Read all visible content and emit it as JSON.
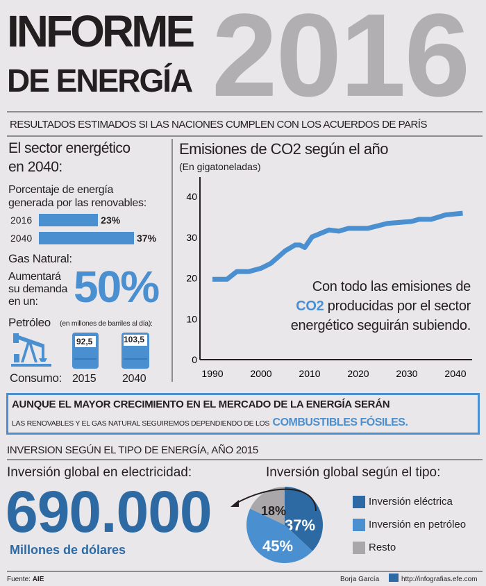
{
  "title": {
    "line1": "INFORME",
    "line2": "DE ENERGÍA",
    "year": "2016"
  },
  "subtitle": "RESULTADOS ESTIMADOS SI LAS NACIONES CUMPLEN CON LOS ACUERDOS DE PARÍS",
  "left": {
    "heading1": "El sector energético",
    "heading2": "en 2040:",
    "renew_label1": "Porcentaje de energía",
    "renew_label2": "generada por las renovables:",
    "gas_label": "Gas Natural:",
    "gas_text1": "Aumentará",
    "gas_text2": "su demanda",
    "gas_text3": "en un:",
    "gas_value": "50%",
    "oil_label": "Petróleo",
    "oil_unit": "(en millones de barriles al día):",
    "consumo_label": "Consumo:"
  },
  "chart_data": [
    {
      "type": "bar",
      "orientation": "horizontal",
      "categories": [
        "2016",
        "2040"
      ],
      "values": [
        23,
        37
      ],
      "value_labels": [
        "23%",
        "37%"
      ],
      "unit": "%"
    },
    {
      "type": "bar",
      "categories": [
        "2015",
        "2040"
      ],
      "values": [
        92.5,
        103.5
      ],
      "value_labels": [
        "92,5",
        "103,5"
      ],
      "unit": "millones de barriles al día"
    },
    {
      "type": "line",
      "title": "Emisiones de CO2 según el año",
      "subtitle": "(En gigatoneladas)",
      "x": [
        1990,
        1993,
        1995,
        1997.5,
        2000,
        2002,
        2005,
        2007,
        2008,
        2009,
        2010.5,
        2014,
        2016,
        2018,
        2022,
        2026,
        2028,
        2031,
        2032.5,
        2035,
        2038,
        2041.5
      ],
      "y": [
        19.7,
        19.7,
        21.6,
        21.6,
        22.4,
        23.6,
        26.7,
        28.1,
        28.1,
        27.5,
        30.1,
        31.8,
        31.5,
        32.2,
        32.2,
        33.4,
        33.6,
        33.9,
        34.4,
        34.4,
        35.5,
        35.9
      ],
      "xticks": [
        "1990",
        "2000",
        "2010",
        "2020",
        "2030",
        "2040"
      ],
      "yticks": [
        "0",
        "10",
        "20",
        "30",
        "40"
      ],
      "xlim": [
        1990,
        2040
      ],
      "ylim": [
        0,
        40
      ],
      "color": "#4a8fd0",
      "grid": false,
      "annotation": {
        "pre": "Con todo las emisiones de",
        "highlight": "CO2",
        "post1": "producidas por el sector",
        "post2": "energético seguirán subiendo."
      }
    },
    {
      "type": "pie",
      "title": "Inversión global según el tipo:",
      "series": [
        {
          "name": "Inversión eléctrica",
          "value": 37,
          "label": "37%",
          "color": "#2d6aa3"
        },
        {
          "name": "Inversión en petróleo",
          "value": 45,
          "label": "45%",
          "color": "#4a8fd0"
        },
        {
          "name": "Resto",
          "value": 18,
          "label": "18%",
          "color": "#a9a7a9"
        }
      ],
      "legend": "right"
    }
  ],
  "banner": {
    "line1": "AUNQUE EL MAYOR CRECIMIENTO EN EL MERCADO DE LA ENERGÍA SERÁN",
    "line2": "LAS RENOVABLES Y EL GAS NATURAL SEGUIREMOS DEPENDIENDO DE LOS",
    "highlight": "COMBUSTIBLES FÓSILES."
  },
  "invest": {
    "section": "INVERSION SEGÚN EL TIPO DE ENERGÍA, AÑO 2015",
    "heading": "Inversión global en electricidad:",
    "value": "690.000",
    "unit": "Millones de dólares"
  },
  "footer": {
    "source_label": "Fuente:",
    "source": "AIE",
    "author": "Borja García",
    "logo": "EFE",
    "url": "http://infografias.efe.com"
  },
  "colors": {
    "blue": "#4a8fd0",
    "dark_blue": "#2d6aa3",
    "gray": "#b1afb1"
  }
}
